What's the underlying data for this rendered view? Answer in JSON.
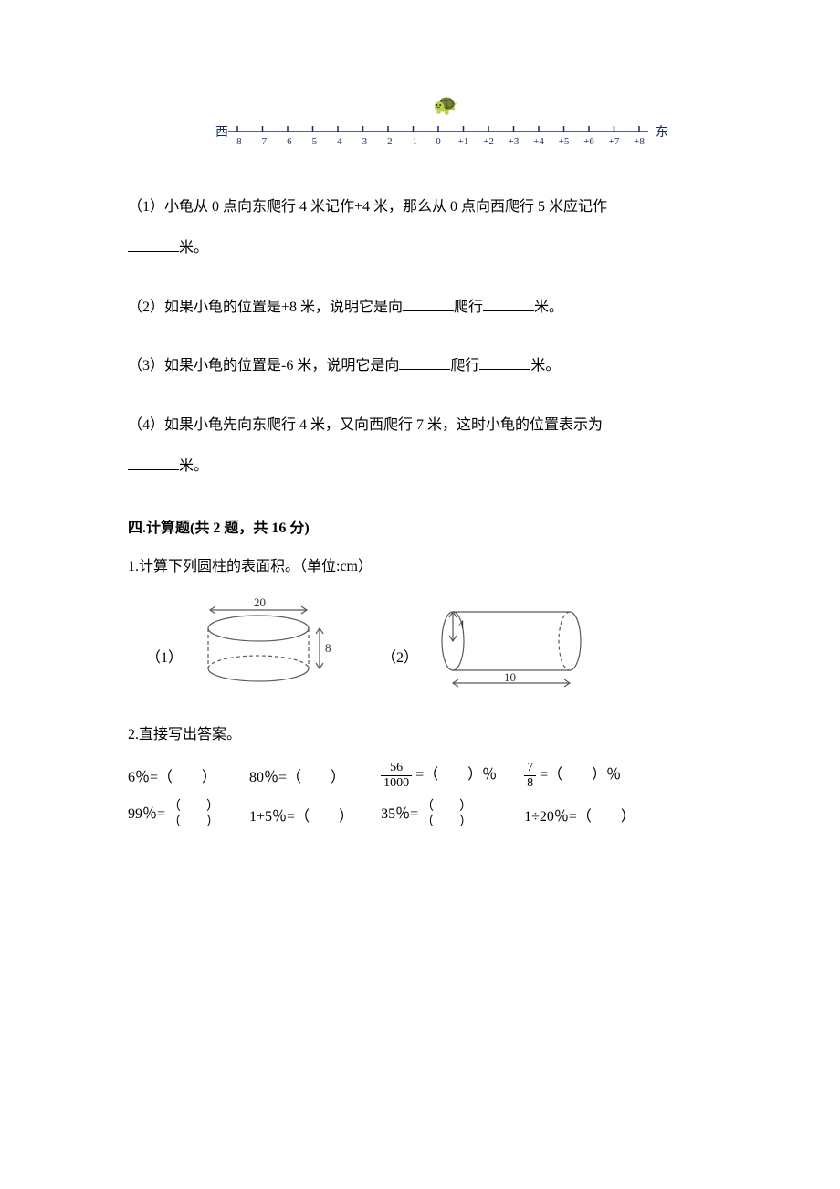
{
  "number_line": {
    "west_label": "西",
    "east_label": "东",
    "ticks": [
      "-8",
      "-7",
      "-6",
      "-5",
      "-4",
      "-3",
      "-2",
      "-1",
      "0",
      "+1",
      "+2",
      "+3",
      "+4",
      "+5",
      "+6",
      "+7",
      "+8"
    ],
    "turtle_glyph": "🐢",
    "axis_color": "#1a2a5a",
    "tick_color": "#1a2a5a",
    "label_color": "#1a2a5a"
  },
  "q1": {
    "text_a": "（1）小龟从 0 点向东爬行 4 米记作+4 米，那么从 0 点向西爬行 5 米应记作",
    "unit": "米。"
  },
  "q2": {
    "text_a": "（2）如果小龟的位置是+8 米，说明它是向",
    "text_b": "爬行",
    "unit": "米。"
  },
  "q3": {
    "text_a": "（3）如果小龟的位置是-6 米，说明它是向",
    "text_b": "爬行",
    "unit": "米。"
  },
  "q4": {
    "text_a": "（4）如果小龟先向东爬行 4 米，又向西爬行 7 米，这时小龟的位置表示为",
    "unit": "米。"
  },
  "section4": {
    "heading": "四.计算题(共 2 题，共 16 分)",
    "q1_stem": "1.计算下列圆柱的表面积。（单位:cm）",
    "diagram1": {
      "label": "（1）",
      "diameter": "20",
      "height": "8",
      "stroke": "#5a5a5a"
    },
    "diagram2": {
      "label": "（2）",
      "radius": "4",
      "length": "10",
      "stroke": "#5a5a5a"
    },
    "q2_stem": "2.直接写出答案。",
    "row1": {
      "c1": "6％=（　　）",
      "c2": "80％=（　　）",
      "c3_frac_num": "56",
      "c3_frac_den": "1000",
      "c3_tail": " =（　　）％",
      "c4_frac_num": "7",
      "c4_frac_den": "8",
      "c4_tail": " =（　　）％"
    },
    "row2": {
      "c1_head": "99％=",
      "c1_num": "（　　）",
      "c1_den": "（　　）",
      "c2": "1+5％=（　　）",
      "c3_head": "35％=",
      "c3_num": "（　　）",
      "c3_den": "（　　）",
      "c4": "1÷20％=（　　）"
    }
  }
}
